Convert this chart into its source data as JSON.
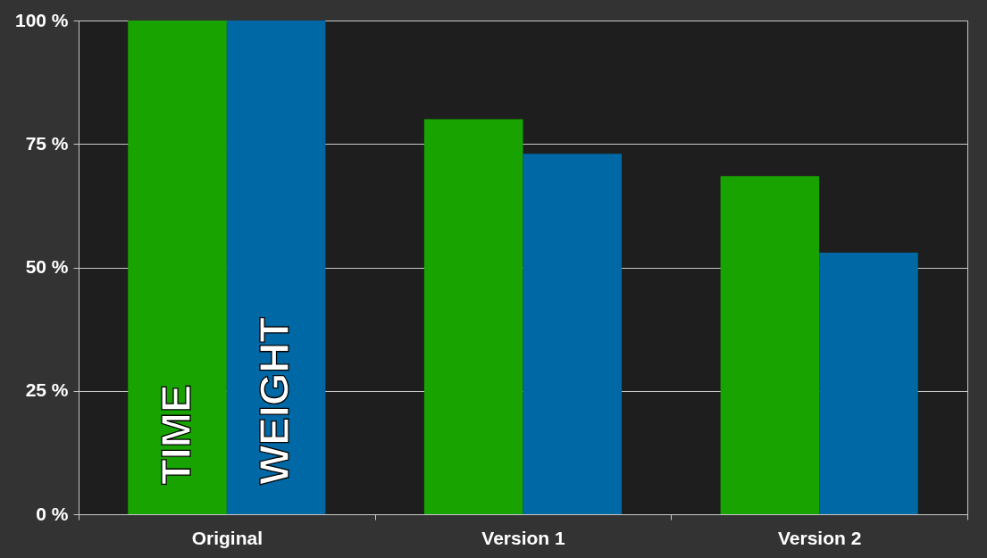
{
  "chart_data": {
    "type": "bar",
    "categories": [
      "Original",
      "Version 1",
      "Version 2"
    ],
    "series": [
      {
        "name": "TIME",
        "color": "#18a300",
        "values": [
          100,
          80,
          68.5
        ]
      },
      {
        "name": "WEIGHT",
        "color": "#0068a5",
        "values": [
          100,
          73,
          53
        ]
      }
    ],
    "ylim": [
      0,
      100
    ],
    "yticks": [
      {
        "value": 0,
        "label": "0 %"
      },
      {
        "value": 25,
        "label": "25 %"
      },
      {
        "value": 50,
        "label": "50 %"
      },
      {
        "value": 75,
        "label": "75 %"
      },
      {
        "value": 100,
        "label": "100 %"
      }
    ],
    "grid": "y"
  }
}
